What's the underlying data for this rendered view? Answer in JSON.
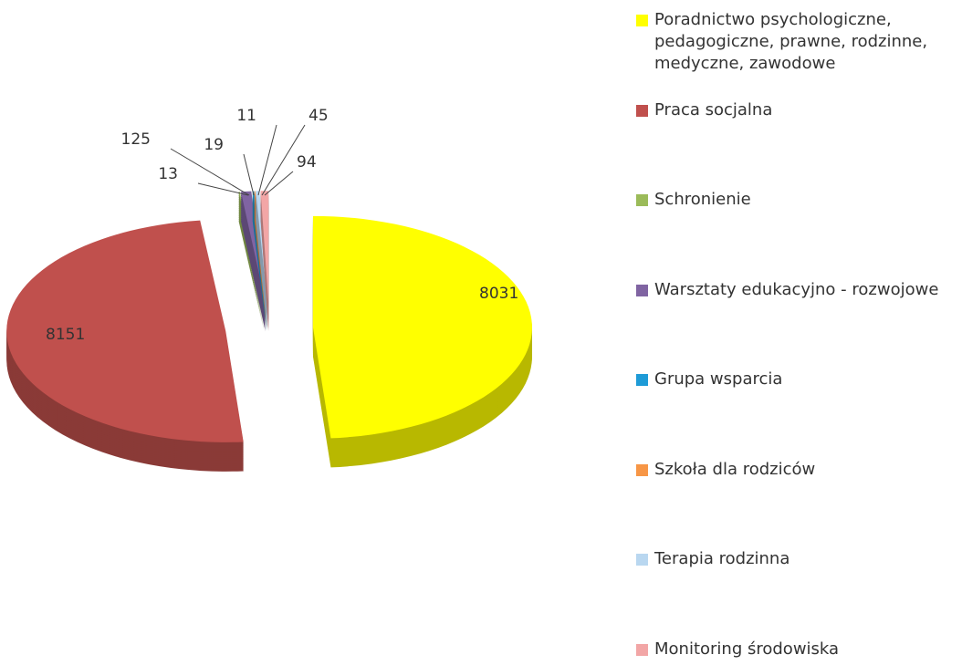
{
  "chart_data": {
    "type": "pie",
    "categories": [
      "Poradnictwo psychologiczne, pedagogiczne, prawne, rodzinne, medyczne, zawodowe",
      "Praca socjalna",
      "Schronienie",
      "Warsztaty edukacyjno - rozwojowe",
      "Grupa wsparcia",
      "Szkoła dla rodziców",
      "Terapia rodzinna",
      "Monitoring środowiska"
    ],
    "values": [
      8031,
      8151,
      13,
      125,
      19,
      11,
      45,
      94
    ],
    "colors": [
      "#ffff00",
      "#c0504d",
      "#9bbb59",
      "#8064a2",
      "#1e9bd7",
      "#f79646",
      "#b9d7f0",
      "#f2a6a6"
    ],
    "legend": "right"
  }
}
